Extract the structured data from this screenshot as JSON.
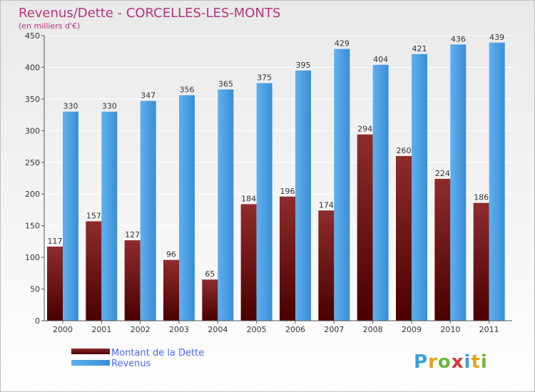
{
  "colors": {
    "title": "#b8347a",
    "dette": "#7a1a1a",
    "revenus": "#4a9fe0",
    "legend_text": "#4a66ff"
  },
  "chart_data": {
    "type": "bar",
    "title": "Revenus/Dette - CORCELLES-LES-MONTS",
    "subtitle": "(en milliers d'€)",
    "categories": [
      "2000",
      "2001",
      "2002",
      "2003",
      "2004",
      "2005",
      "2006",
      "2007",
      "2008",
      "2009",
      "2010",
      "2011"
    ],
    "series": [
      {
        "name": "Montant de la Dette",
        "values": [
          117,
          157,
          127,
          96,
          65,
          184,
          196,
          174,
          294,
          260,
          224,
          186
        ]
      },
      {
        "name": "Revenus",
        "values": [
          330,
          330,
          347,
          356,
          365,
          375,
          395,
          429,
          404,
          421,
          436,
          439
        ]
      }
    ],
    "ylim": [
      0,
      450
    ],
    "yticks": [
      0,
      50,
      100,
      150,
      200,
      250,
      300,
      350,
      400,
      450
    ],
    "grid": true,
    "legend": "bottom-left"
  },
  "logo": {
    "text": "Proxiti"
  }
}
